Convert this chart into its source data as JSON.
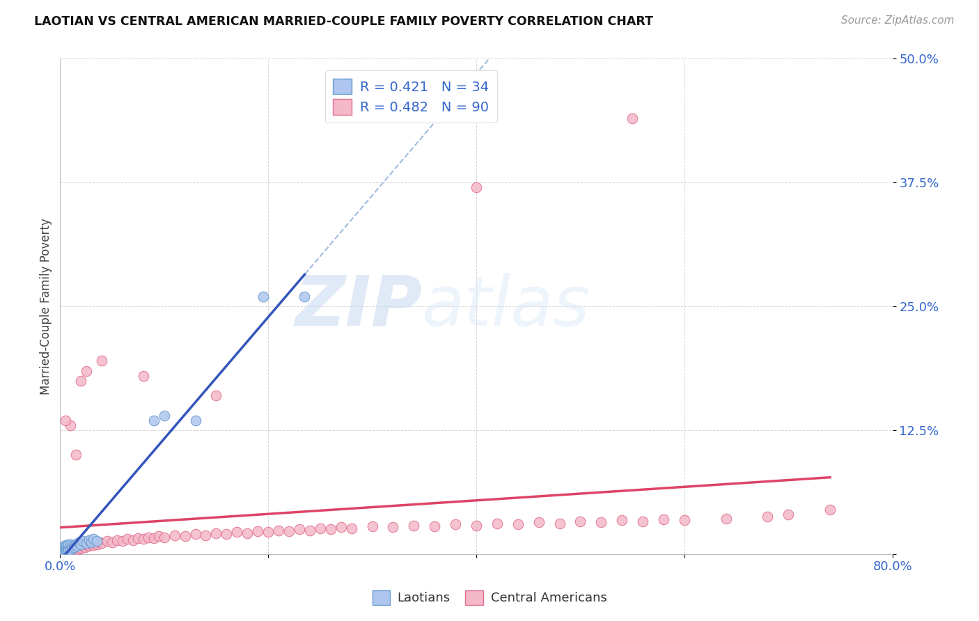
{
  "title": "LAOTIAN VS CENTRAL AMERICAN MARRIED-COUPLE FAMILY POVERTY CORRELATION CHART",
  "source": "Source: ZipAtlas.com",
  "ylabel": "Married-Couple Family Poverty",
  "xlim": [
    0.0,
    0.8
  ],
  "ylim": [
    0.0,
    0.5
  ],
  "xticks": [
    0.0,
    0.2,
    0.4,
    0.6,
    0.8
  ],
  "xticklabels": [
    "0.0%",
    "",
    "",
    "",
    "80.0%"
  ],
  "yticks": [
    0.0,
    0.125,
    0.25,
    0.375,
    0.5
  ],
  "yticklabels": [
    "",
    "12.5%",
    "25.0%",
    "37.5%",
    "50.0%"
  ],
  "grid_color": "#cccccc",
  "background_color": "#ffffff",
  "watermark_zip": "ZIP",
  "watermark_atlas": "atlas",
  "laotian_color": "#aec6f0",
  "laotian_edge": "#6699cc",
  "laotian_R": 0.421,
  "laotian_N": 34,
  "central_color": "#f4b8c8",
  "central_edge": "#e07090",
  "central_R": 0.482,
  "central_N": 90,
  "laotian_trend_color": "#3355bb",
  "central_trend_color": "#dd4466",
  "laotian_dash_color": "#88aad8",
  "lao_x": [
    0.002,
    0.003,
    0.004,
    0.004,
    0.005,
    0.005,
    0.006,
    0.006,
    0.007,
    0.007,
    0.008,
    0.008,
    0.009,
    0.01,
    0.01,
    0.011,
    0.012,
    0.013,
    0.014,
    0.015,
    0.016,
    0.018,
    0.02,
    0.022,
    0.025,
    0.028,
    0.03,
    0.032,
    0.035,
    0.09,
    0.1,
    0.13,
    0.195,
    0.235
  ],
  "lao_y": [
    0.004,
    0.006,
    0.003,
    0.008,
    0.004,
    0.007,
    0.005,
    0.009,
    0.004,
    0.008,
    0.005,
    0.01,
    0.007,
    0.004,
    0.01,
    0.008,
    0.006,
    0.009,
    0.007,
    0.01,
    0.008,
    0.012,
    0.01,
    0.013,
    0.011,
    0.014,
    0.012,
    0.015,
    0.013,
    0.135,
    0.14,
    0.135,
    0.26,
    0.26
  ],
  "ca_x": [
    0.003,
    0.004,
    0.005,
    0.006,
    0.007,
    0.007,
    0.008,
    0.009,
    0.01,
    0.01,
    0.011,
    0.012,
    0.013,
    0.014,
    0.015,
    0.016,
    0.017,
    0.018,
    0.019,
    0.02,
    0.022,
    0.024,
    0.026,
    0.028,
    0.03,
    0.032,
    0.034,
    0.036,
    0.038,
    0.04,
    0.045,
    0.05,
    0.055,
    0.06,
    0.065,
    0.07,
    0.075,
    0.08,
    0.085,
    0.09,
    0.095,
    0.1,
    0.11,
    0.12,
    0.13,
    0.14,
    0.15,
    0.16,
    0.17,
    0.18,
    0.19,
    0.2,
    0.21,
    0.22,
    0.23,
    0.24,
    0.25,
    0.26,
    0.27,
    0.28,
    0.3,
    0.32,
    0.34,
    0.36,
    0.38,
    0.4,
    0.42,
    0.44,
    0.46,
    0.48,
    0.5,
    0.52,
    0.54,
    0.56,
    0.58,
    0.6,
    0.64,
    0.68,
    0.7,
    0.74,
    0.15,
    0.08,
    0.04,
    0.025,
    0.02,
    0.015,
    0.01,
    0.005,
    0.4,
    0.55
  ],
  "ca_y": [
    0.004,
    0.005,
    0.003,
    0.006,
    0.004,
    0.007,
    0.005,
    0.003,
    0.005,
    0.008,
    0.004,
    0.006,
    0.005,
    0.007,
    0.004,
    0.008,
    0.006,
    0.005,
    0.007,
    0.006,
    0.008,
    0.007,
    0.009,
    0.008,
    0.01,
    0.009,
    0.011,
    0.01,
    0.012,
    0.011,
    0.013,
    0.012,
    0.014,
    0.013,
    0.015,
    0.014,
    0.016,
    0.015,
    0.017,
    0.016,
    0.018,
    0.017,
    0.019,
    0.018,
    0.02,
    0.019,
    0.021,
    0.02,
    0.022,
    0.021,
    0.023,
    0.022,
    0.024,
    0.023,
    0.025,
    0.024,
    0.026,
    0.025,
    0.027,
    0.026,
    0.028,
    0.027,
    0.029,
    0.028,
    0.03,
    0.029,
    0.031,
    0.03,
    0.032,
    0.031,
    0.033,
    0.032,
    0.034,
    0.033,
    0.035,
    0.034,
    0.036,
    0.038,
    0.04,
    0.045,
    0.16,
    0.18,
    0.195,
    0.185,
    0.175,
    0.1,
    0.13,
    0.135,
    0.37,
    0.44
  ]
}
